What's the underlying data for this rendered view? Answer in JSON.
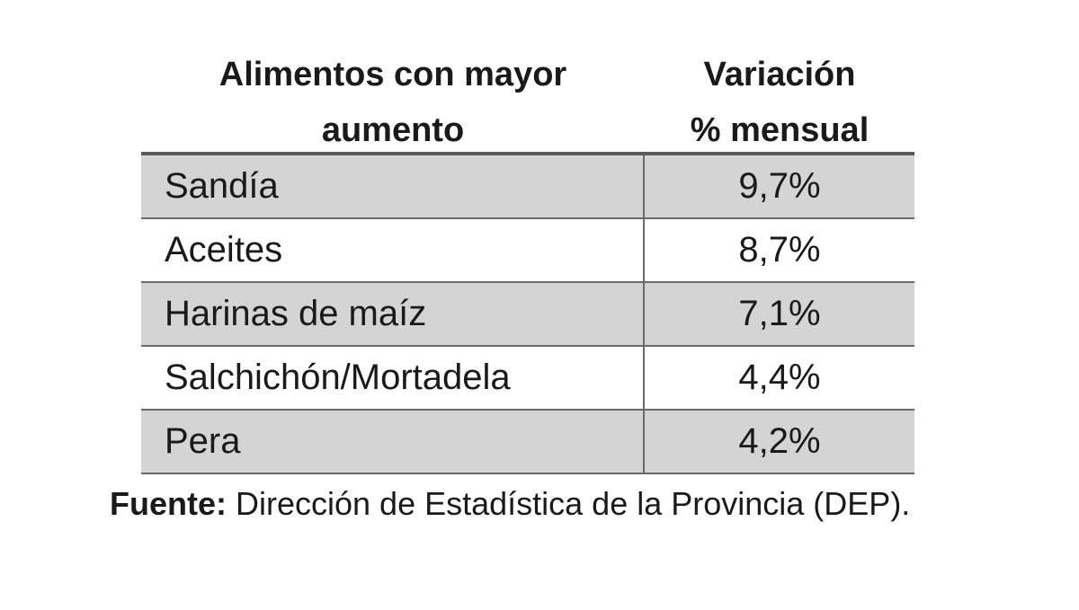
{
  "table": {
    "headers": [
      "Alimentos con mayor\naumento",
      "Variación\n% mensual"
    ],
    "rows": [
      {
        "name": "Sandía",
        "value": "9,7%"
      },
      {
        "name": "Aceites",
        "value": "8,7%"
      },
      {
        "name": "Harinas de maíz",
        "value": "7,1%"
      },
      {
        "name": "Salchichón/Mortadela",
        "value": "4,4%"
      },
      {
        "name": "Pera",
        "value": "4,2%"
      }
    ]
  },
  "source": {
    "label": "Fuente:",
    "text": " Dirección de Estadística de la Provincia (DEP)."
  },
  "colors": {
    "row_shade": "#d4d4d4",
    "border": "#6a6a6a"
  }
}
